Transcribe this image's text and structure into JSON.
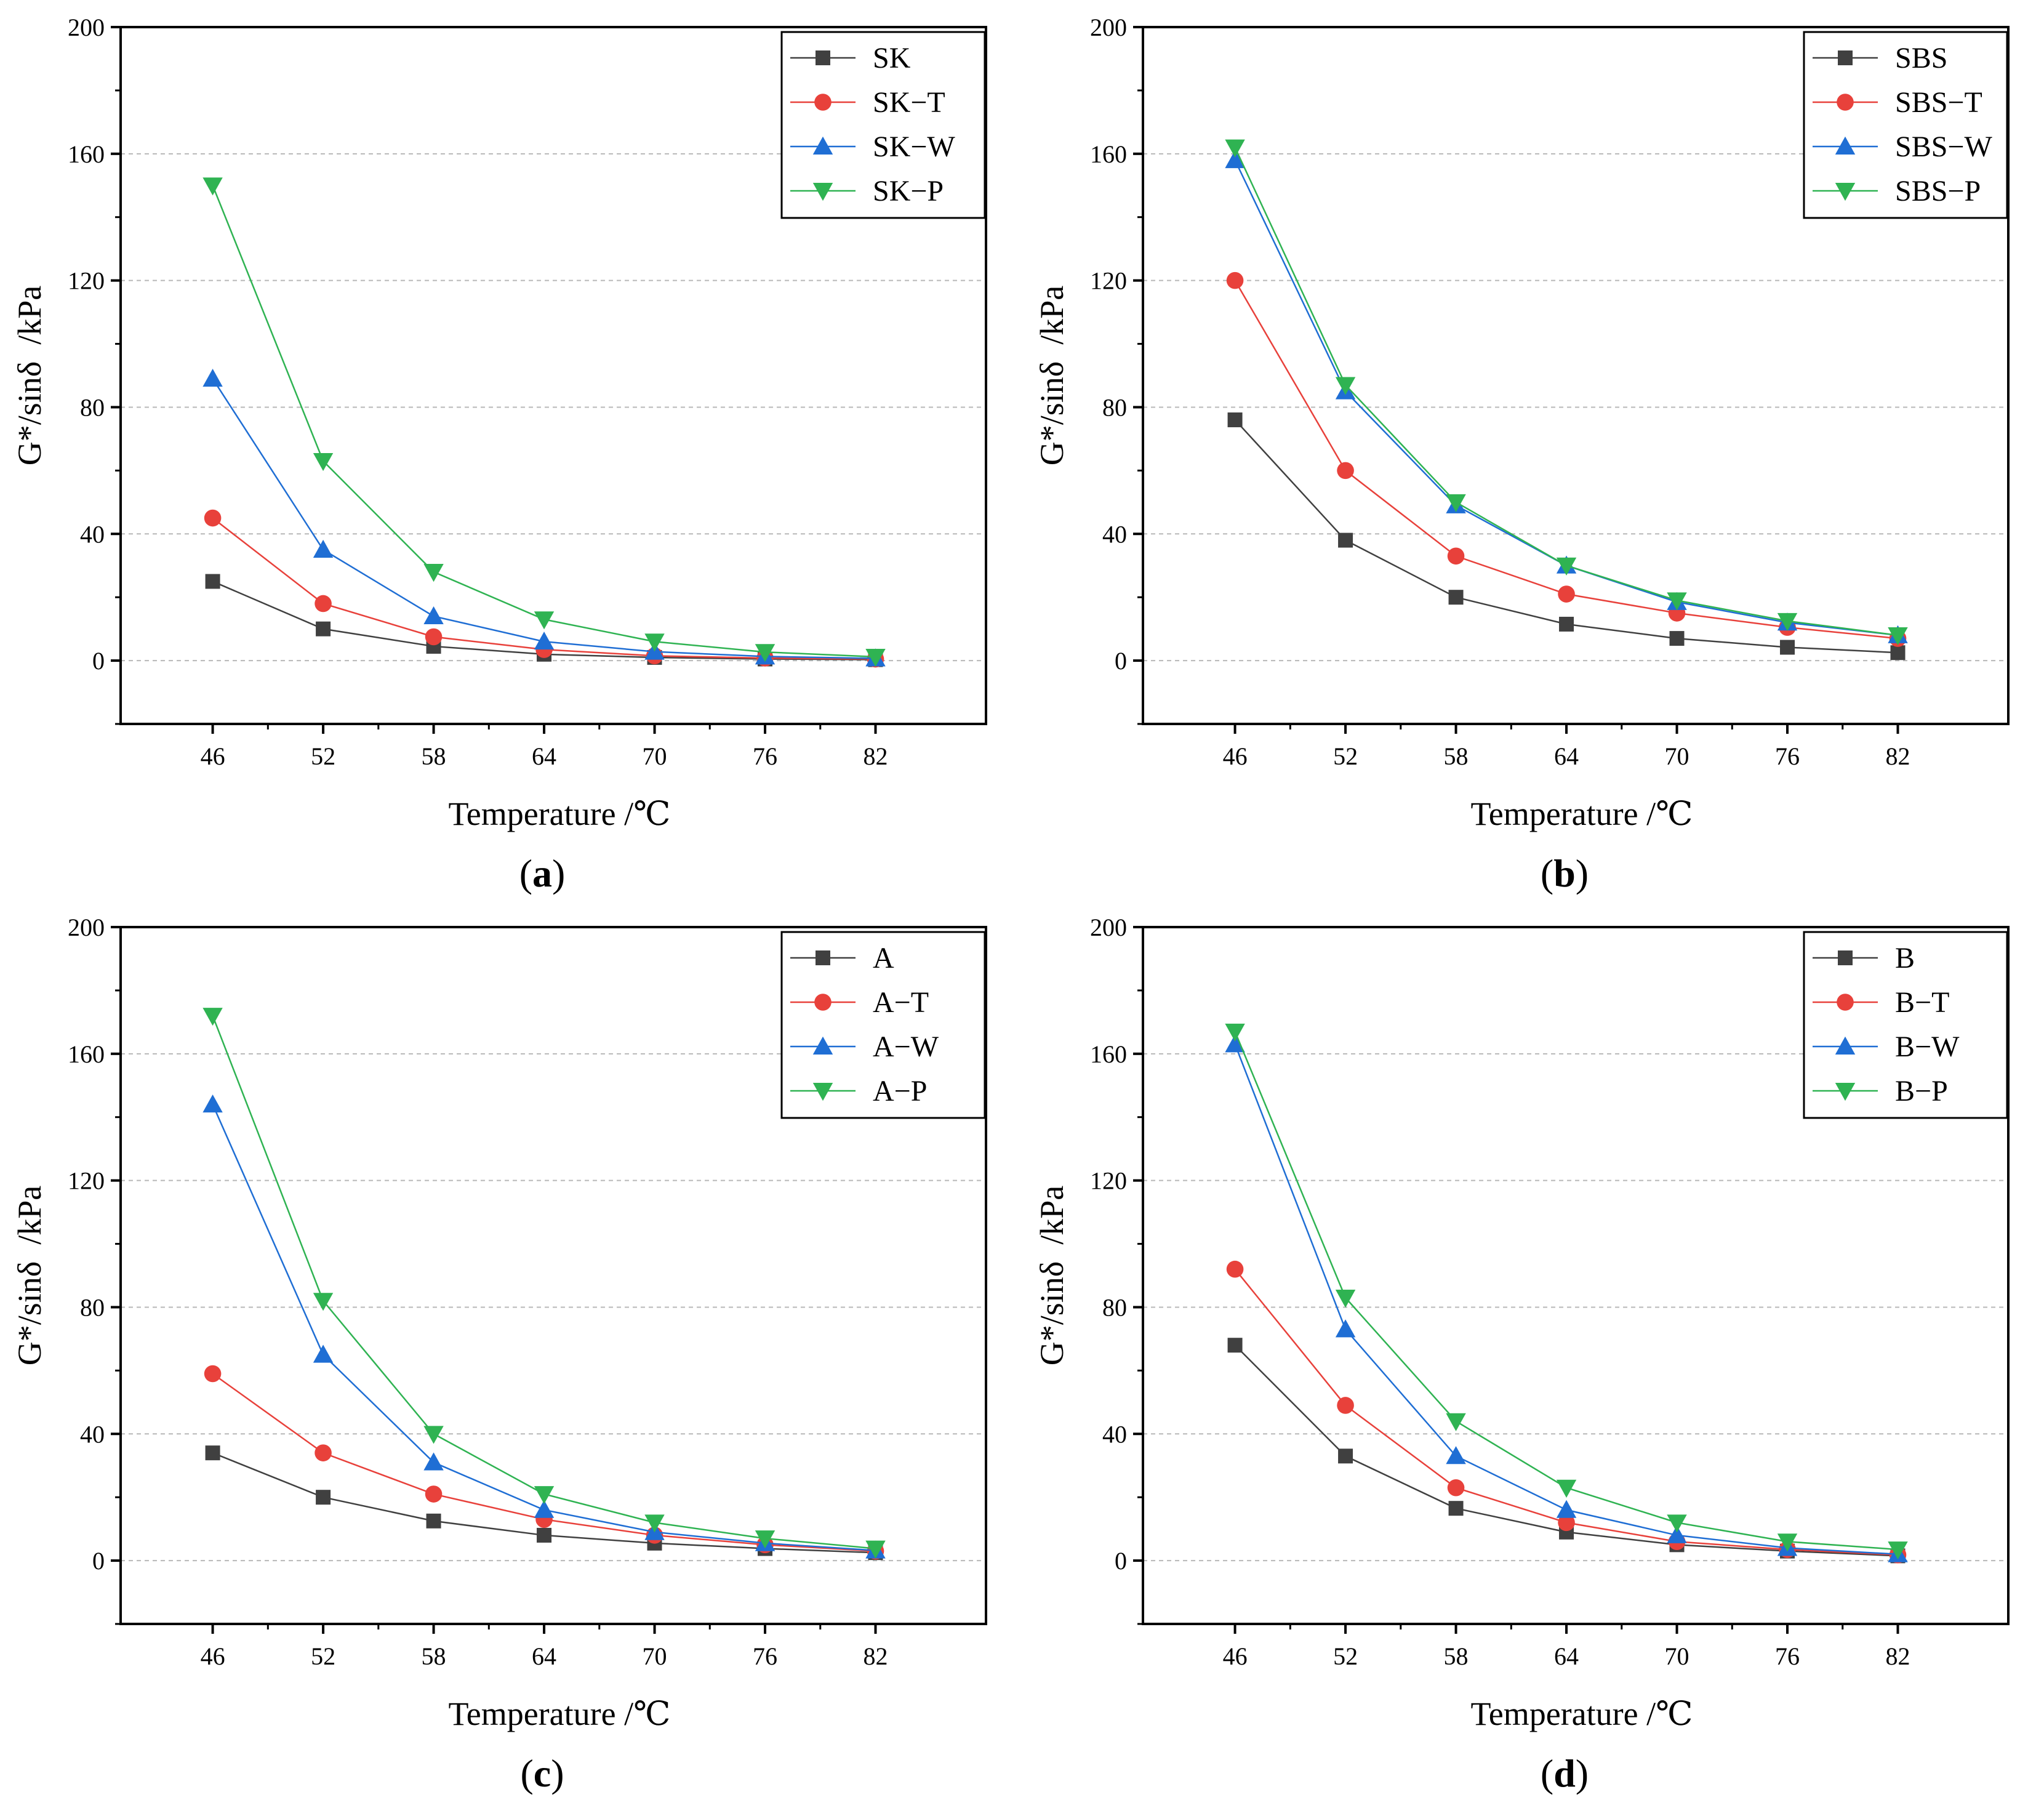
{
  "chart_data": [
    {
      "type": "line",
      "panel_label": "a",
      "title": "",
      "xlabel": "Temperature /℃",
      "ylabel": "G*/sinδ  /kPa",
      "x": [
        46,
        52,
        58,
        64,
        70,
        76,
        82
      ],
      "xlim": [
        41,
        88
      ],
      "ylim": [
        -20,
        200
      ],
      "yticks": [
        0,
        40,
        80,
        120,
        160,
        200
      ],
      "grid": true,
      "legend_position": "top-right",
      "series": [
        {
          "name": "SK",
          "marker": "square",
          "color": "#404040",
          "values": [
            25,
            10,
            4.5,
            2,
            1,
            0.5,
            0.3
          ]
        },
        {
          "name": "SK−T",
          "marker": "circle",
          "color": "#e8413b",
          "values": [
            45,
            18,
            7.5,
            3.5,
            1.5,
            0.8,
            0.5
          ]
        },
        {
          "name": "SK−W",
          "marker": "triangle-up",
          "color": "#1f6ed4",
          "values": [
            89,
            35,
            14,
            6,
            2.8,
            1.3,
            0.7
          ]
        },
        {
          "name": "SK−P",
          "marker": "triangle-down",
          "color": "#2fb352",
          "values": [
            150,
            63,
            28,
            13,
            6,
            2.7,
            1.2
          ]
        }
      ]
    },
    {
      "type": "line",
      "panel_label": "b",
      "title": "",
      "xlabel": "Temperature /℃",
      "ylabel": "G*/sinδ  /kPa",
      "x": [
        46,
        52,
        58,
        64,
        70,
        76,
        82
      ],
      "xlim": [
        41,
        88
      ],
      "ylim": [
        -20,
        200
      ],
      "yticks": [
        0,
        40,
        80,
        120,
        160,
        200
      ],
      "grid": true,
      "legend_position": "top-right",
      "series": [
        {
          "name": "SBS",
          "marker": "square",
          "color": "#404040",
          "values": [
            76,
            38,
            20,
            11.5,
            7,
            4.2,
            2.5
          ]
        },
        {
          "name": "SBS−T",
          "marker": "circle",
          "color": "#e8413b",
          "values": [
            120,
            60,
            33,
            21,
            15,
            10.5,
            7
          ]
        },
        {
          "name": "SBS−W",
          "marker": "triangle-up",
          "color": "#1f6ed4",
          "values": [
            158,
            85,
            49,
            30,
            18.5,
            12,
            8
          ]
        },
        {
          "name": "SBS−P",
          "marker": "triangle-down",
          "color": "#2fb352",
          "values": [
            162,
            87,
            50,
            30,
            19,
            12.5,
            8
          ]
        }
      ]
    },
    {
      "type": "line",
      "panel_label": "c",
      "title": "",
      "xlabel": "Temperature /℃",
      "ylabel": "G*/sinδ  /kPa",
      "x": [
        46,
        52,
        58,
        64,
        70,
        76,
        82
      ],
      "xlim": [
        41,
        88
      ],
      "ylim": [
        -20,
        200
      ],
      "yticks": [
        0,
        40,
        80,
        120,
        160,
        200
      ],
      "grid": true,
      "legend_position": "top-right",
      "series": [
        {
          "name": "A",
          "marker": "square",
          "color": "#404040",
          "values": [
            34,
            20,
            12.5,
            8,
            5.5,
            3.8,
            2.5
          ]
        },
        {
          "name": "A−T",
          "marker": "circle",
          "color": "#e8413b",
          "values": [
            59,
            34,
            21,
            13,
            8,
            5,
            3
          ]
        },
        {
          "name": "A−W",
          "marker": "triangle-up",
          "color": "#1f6ed4",
          "values": [
            144,
            65,
            31,
            16,
            9,
            5.5,
            3.2
          ]
        },
        {
          "name": "A−P",
          "marker": "triangle-down",
          "color": "#2fb352",
          "values": [
            172,
            82,
            40,
            21,
            12,
            7,
            3.8
          ]
        }
      ]
    },
    {
      "type": "line",
      "panel_label": "d",
      "title": "",
      "xlabel": "Temperature /℃",
      "ylabel": "G*/sinδ  /kPa",
      "x": [
        46,
        52,
        58,
        64,
        70,
        76,
        82
      ],
      "xlim": [
        41,
        88
      ],
      "ylim": [
        -20,
        200
      ],
      "yticks": [
        0,
        40,
        80,
        120,
        160,
        200
      ],
      "grid": true,
      "legend_position": "top-right",
      "series": [
        {
          "name": "B",
          "marker": "square",
          "color": "#404040",
          "values": [
            68,
            33,
            16.5,
            9,
            5,
            3,
            1.5
          ]
        },
        {
          "name": "B−T",
          "marker": "circle",
          "color": "#e8413b",
          "values": [
            92,
            49,
            23,
            12,
            6,
            3.5,
            1.8
          ]
        },
        {
          "name": "B−W",
          "marker": "triangle-up",
          "color": "#1f6ed4",
          "values": [
            163,
            73,
            33,
            16,
            8,
            4,
            2
          ]
        },
        {
          "name": "B−P",
          "marker": "triangle-down",
          "color": "#2fb352",
          "values": [
            167,
            83,
            44,
            23,
            12,
            6,
            3.5
          ]
        }
      ]
    }
  ]
}
